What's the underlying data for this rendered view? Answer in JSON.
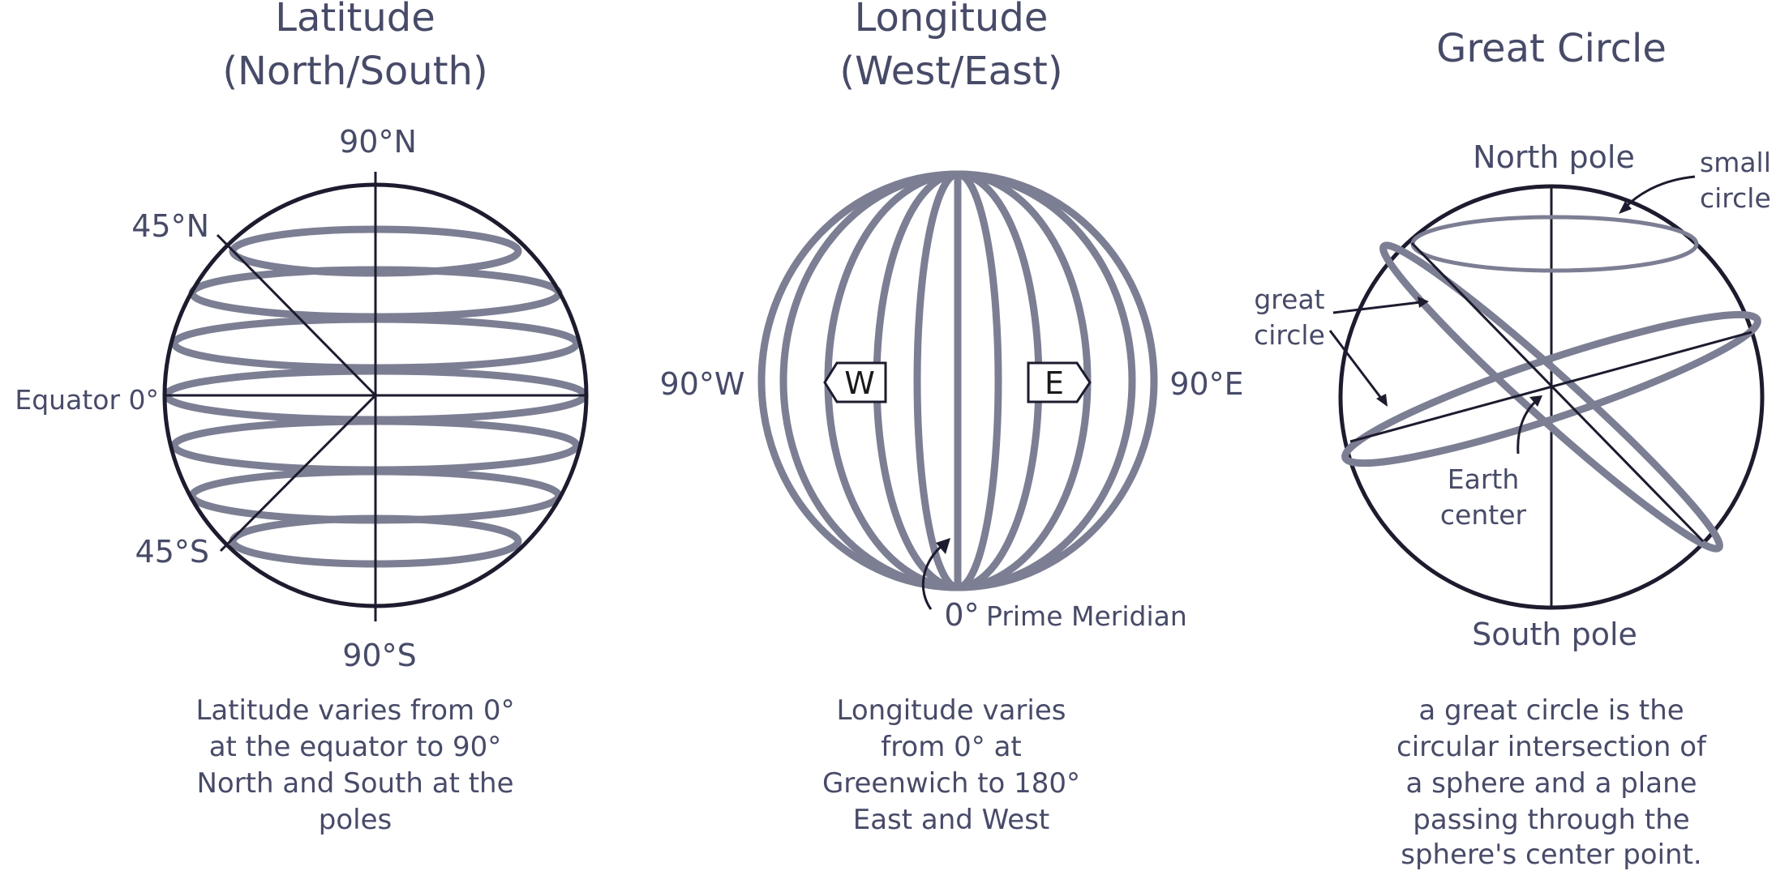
{
  "latitude": {
    "title_line1": "Latitude",
    "title_line2": "(North/South)",
    "label_north": "90°N",
    "label_south": "90°S",
    "label_45n": "45°N",
    "label_45s": "45°S",
    "label_equator": "Equator 0°",
    "caption": [
      "Latitude varies from 0°",
      "at the equator to 90°",
      "North and South at the",
      "poles"
    ]
  },
  "longitude": {
    "title_line1": "Longitude",
    "title_line2": "(West/East)",
    "label_west": "90°W",
    "label_east": "90°E",
    "tag_west": "W",
    "tag_east": "E",
    "label_zero": "0°",
    "label_prime": "Prime Meridian",
    "caption": [
      "Longitude varies",
      "from 0° at",
      "Greenwich to 180°",
      "East and West"
    ]
  },
  "great_circle": {
    "title": "Great Circle",
    "label_north_pole": "North pole",
    "label_south_pole": "South pole",
    "label_small_circle": [
      "small",
      "circle"
    ],
    "label_great_circle": [
      "great",
      "circle"
    ],
    "label_earth_center": [
      "Earth",
      "center"
    ],
    "caption": [
      "a great circle is the",
      "circular intersection of",
      "a sphere and a plane",
      "passing through the",
      "sphere's center point."
    ]
  },
  "colors": {
    "text": "#474b68",
    "grid_lines": "#7c7f93",
    "outline": "#1d1b2e"
  }
}
